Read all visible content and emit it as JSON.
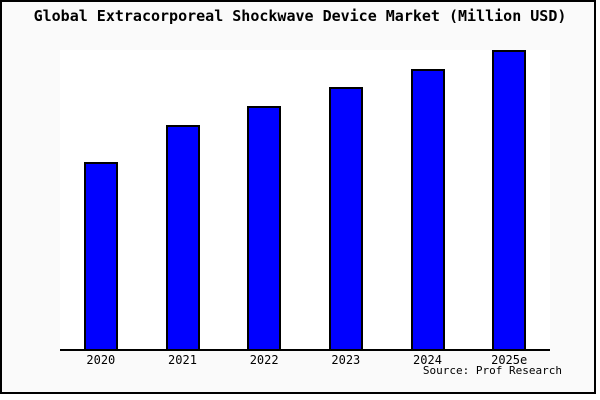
{
  "chart_data": {
    "type": "bar",
    "title": "Global Extracorporeal Shockwave Device Market (Million USD)",
    "categories": [
      "2020",
      "2021",
      "2022",
      "2023",
      "2024",
      "2025e"
    ],
    "values": [
      62.5,
      75,
      81.25,
      87.5,
      93.75,
      100
    ],
    "values_note": "Relative bar heights as percent of tallest bar (2025e = 100); no y-axis scale, gridlines or data labels are shown in the image. Height ratio approx 10:12:13:14:15:16.",
    "xlabel": "",
    "ylabel": "",
    "ylim": [
      0,
      100
    ],
    "grid": false,
    "legend": false,
    "colors": {
      "bar_fill": "#0000ff",
      "bar_edge": "#000000",
      "figure_background": "#fafafa",
      "plot_background": "#ffffff",
      "frame_border": "#000000",
      "text": "#000000"
    }
  },
  "source": "Source: Prof Research"
}
